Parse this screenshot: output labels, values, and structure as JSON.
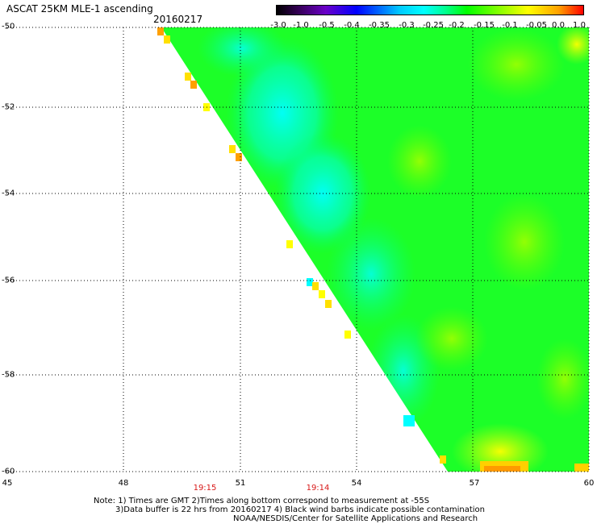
{
  "title": "ASCAT 25KM MLE-1 ascending",
  "date": "20160217",
  "colorbar": {
    "labels": [
      "-3.0",
      "-1.0",
      "-0.5",
      "-0.4",
      "-0.35",
      "-0.3",
      "-0.25",
      "-0.2",
      "-0.15",
      "-0.1",
      "-0.05",
      "0.0",
      "1.0"
    ]
  },
  "lat_labels": [
    "-50",
    "-52",
    "-54",
    "-56",
    "-58",
    "-60"
  ],
  "lon_labels": [
    "45",
    "48",
    "51",
    "54",
    "57",
    "60"
  ],
  "time_labels": [
    "19:15",
    "19:14"
  ],
  "notes": [
    "Note: 1) Times are GMT 2)Times along bottom correspond to measurement at -55S",
    "3)Data buffer is 22 hrs from 20160217 4) Black wind barbs indicate possible contamination",
    "NOAA/NESDIS/Center for Satellite Applications and Research"
  ],
  "colors": {
    "green": "#00ff00",
    "light_green": "#80ff00",
    "cyan": "#00ffff",
    "aqua": "#00ffc0",
    "yellow": "#ffff00",
    "orange": "#ffa000",
    "red": "#ff0000"
  }
}
